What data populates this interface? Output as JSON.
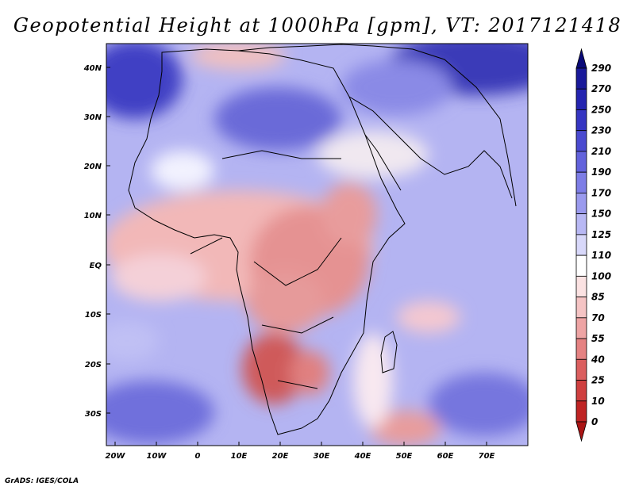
{
  "title": "Geopotential Height at 1000hPa [gpm], VT: 2017121418",
  "credit": "GrADS: IGES/COLA",
  "map": {
    "x_ticks": [
      "20W",
      "10W",
      "0",
      "10E",
      "20E",
      "30E",
      "40E",
      "50E",
      "60E",
      "70E"
    ],
    "y_ticks": [
      "40N",
      "30N",
      "20N",
      "10N",
      "EQ",
      "10S",
      "20S",
      "30S"
    ]
  },
  "colorbar": {
    "labels": [
      "290",
      "270",
      "250",
      "230",
      "210",
      "190",
      "170",
      "150",
      "125",
      "110",
      "100",
      "85",
      "70",
      "55",
      "40",
      "25",
      "10",
      "0"
    ],
    "colors": [
      "#0a0a78",
      "#19199a",
      "#2424b0",
      "#3535c2",
      "#4a4ad0",
      "#6262dc",
      "#7d7de6",
      "#9a9aee",
      "#b8b8f4",
      "#d8d8fa",
      "#ffffff",
      "#fbe2e2",
      "#f5c4c4",
      "#eea4a4",
      "#e58282",
      "#db5f5f",
      "#cf3f3f",
      "#bf2424",
      "#aa1414"
    ]
  }
}
